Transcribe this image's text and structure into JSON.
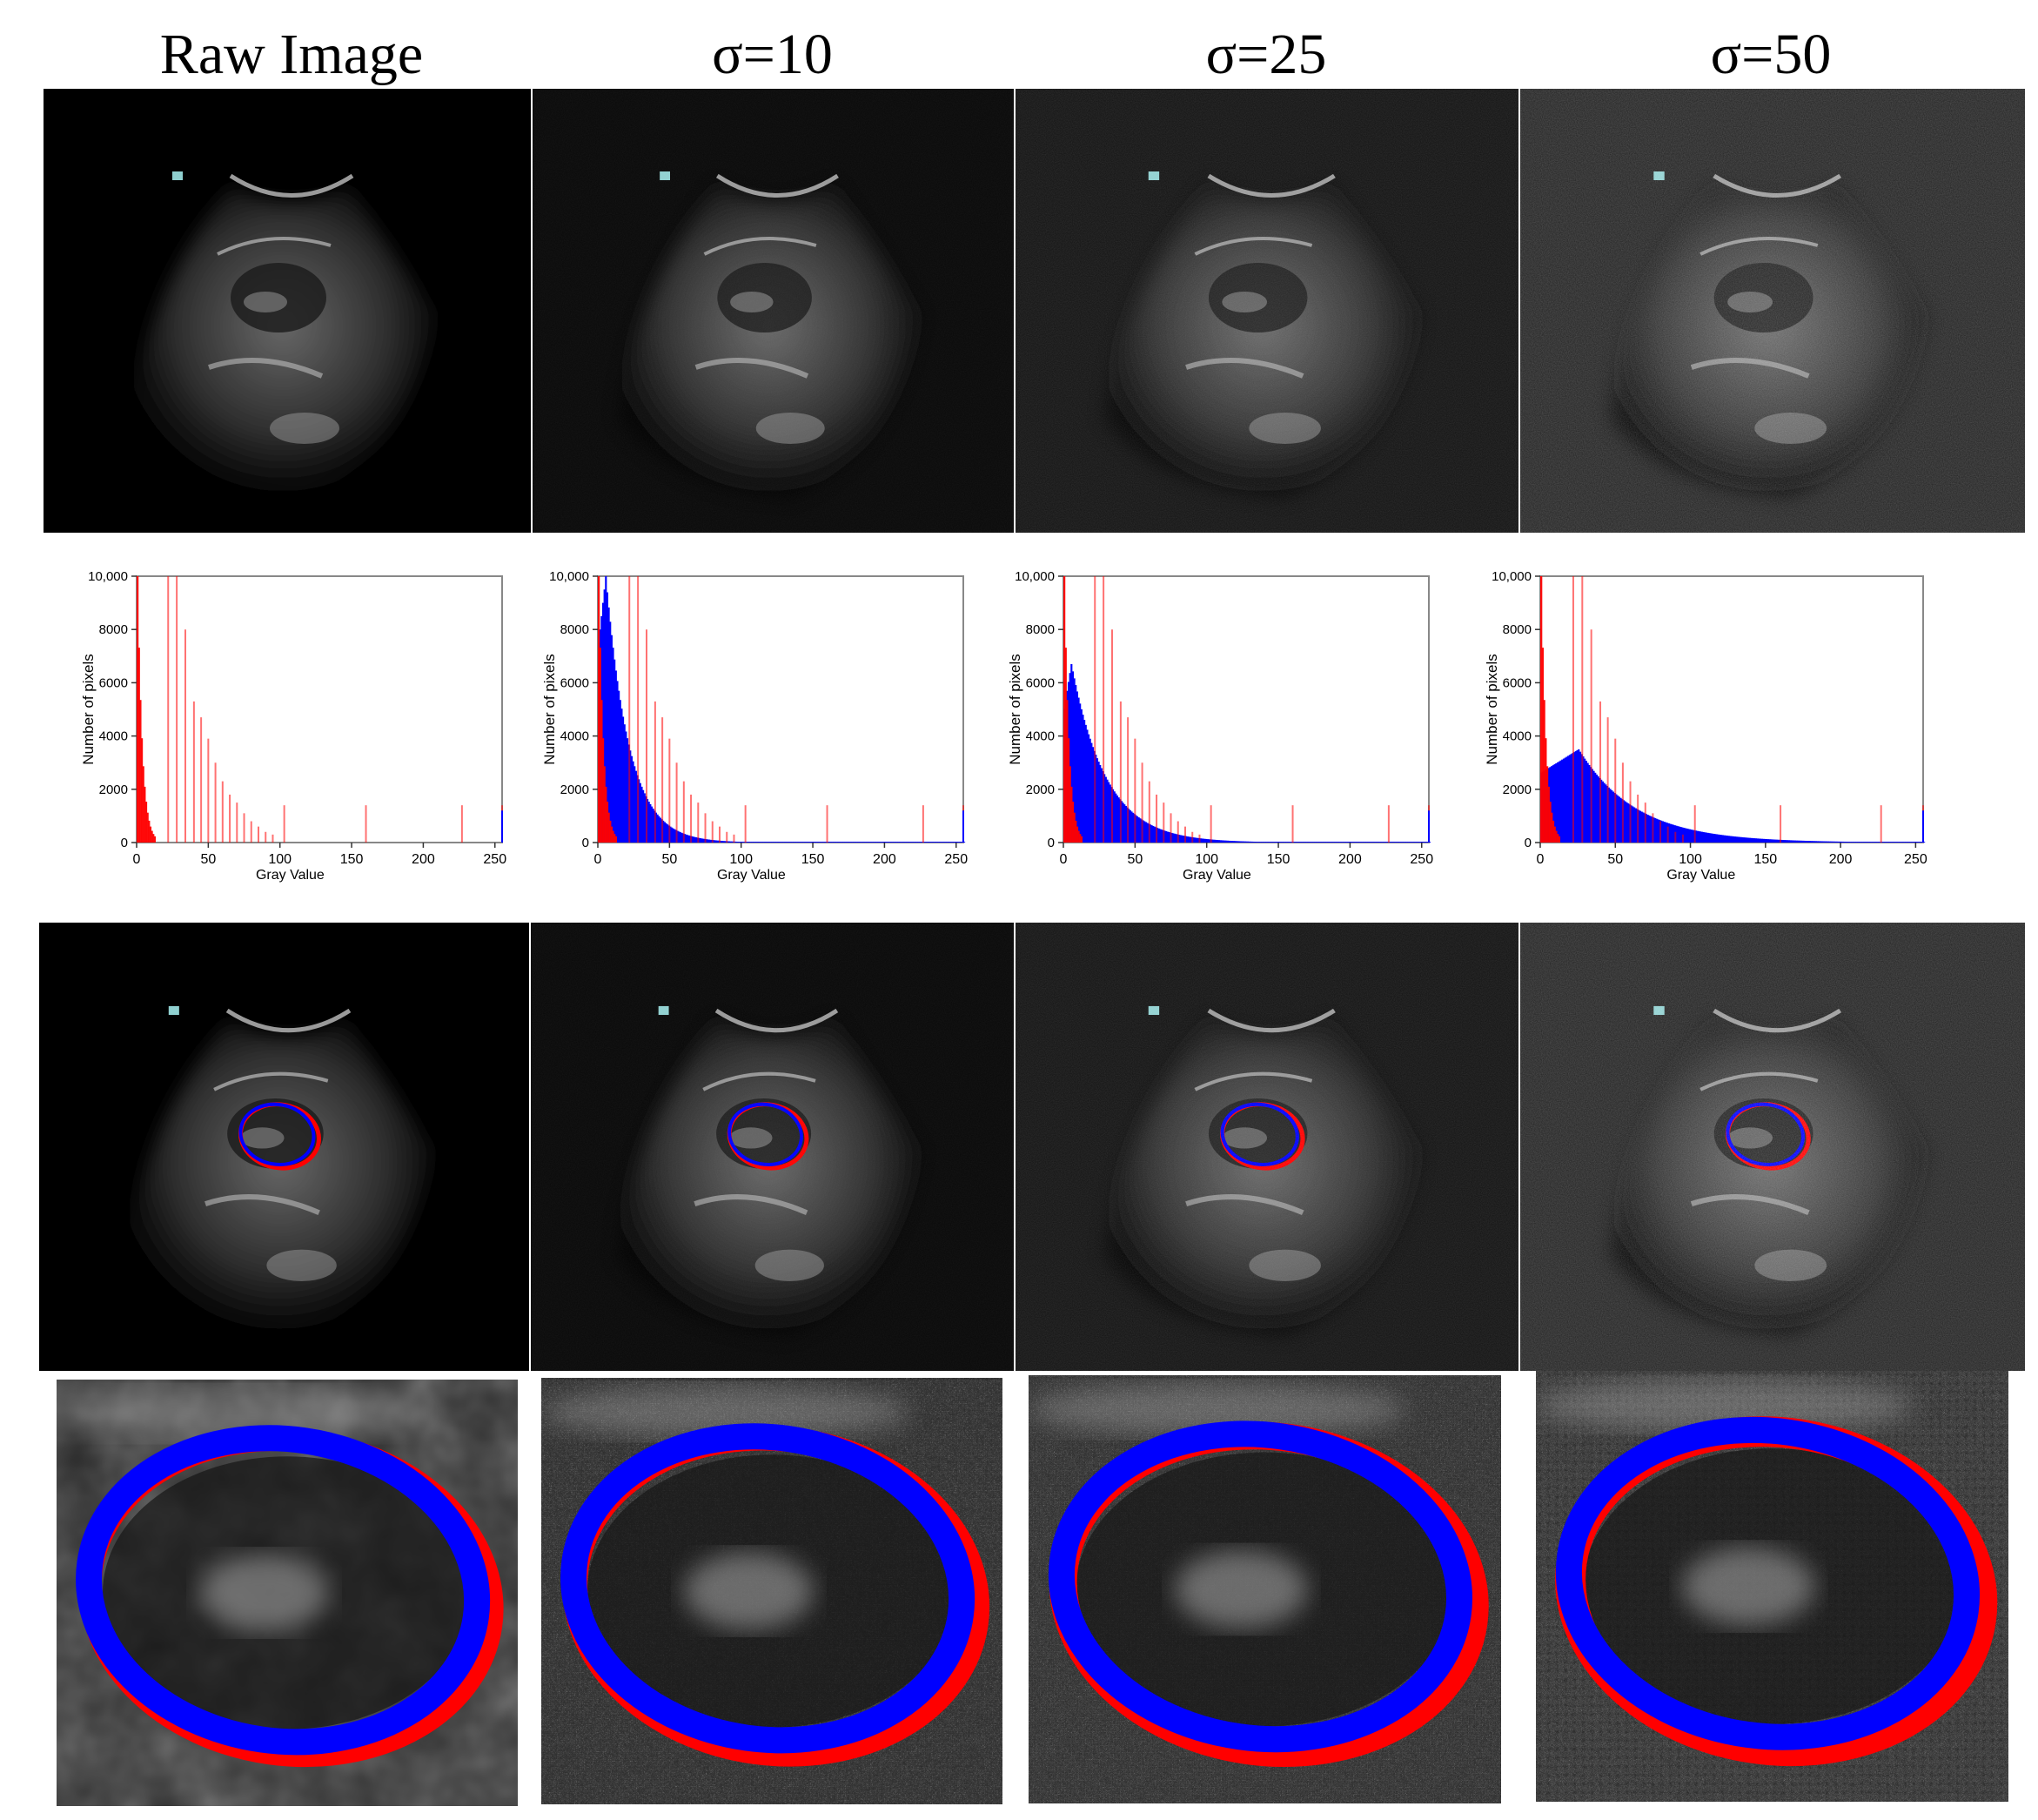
{
  "columns": [
    {
      "title": "Raw Image",
      "noise": 0.0,
      "bg": 0.0,
      "shows_noisy_hist": false
    },
    {
      "title": "σ=10",
      "noise": 0.2,
      "bg": 0.03,
      "shows_noisy_hist": true
    },
    {
      "title": "σ=25",
      "noise": 0.45,
      "bg": 0.07,
      "shows_noisy_hist": true
    },
    {
      "title": "σ=50",
      "noise": 0.85,
      "bg": 0.13,
      "shows_noisy_hist": true
    }
  ],
  "colors": {
    "raw_hist": "#ff0000",
    "noisy_hist": "#0000ff",
    "contour_a": "#ff0000",
    "contour_b": "#0000ff",
    "axis": "#333333",
    "frame": "#888888"
  },
  "chart_data": [
    {
      "type": "bar",
      "xlabel": "Gray  Value",
      "ylabel": "Number of pixels",
      "xlim": [
        0,
        255
      ],
      "ylim": [
        0,
        10000
      ],
      "x_ticks": [
        "0",
        "50",
        "100",
        "150",
        "200",
        "250"
      ],
      "y_ticks": [
        "0",
        "2000",
        "4000",
        "6000",
        "8000",
        "10,000"
      ],
      "series": [
        {
          "values_desc": "raw-decay",
          "spikes": [
            [
              22,
              10000
            ],
            [
              28,
              10000
            ],
            [
              34,
              8000
            ],
            [
              40,
              5300
            ],
            [
              45,
              4700
            ],
            [
              50,
              3900
            ],
            [
              55,
              3000
            ]
          ]
        }
      ]
    },
    {
      "type": "bar",
      "xlabel": "Gray  Value",
      "ylabel": "Number of pixels",
      "xlim": [
        0,
        255
      ],
      "ylim": [
        0,
        10000
      ],
      "x_ticks": [
        "0",
        "50",
        "100",
        "150",
        "200",
        "250"
      ],
      "y_ticks": [
        "0",
        "2000",
        "4000",
        "6000",
        "8000",
        "10,000"
      ],
      "series": [
        {
          "peak": 10000,
          "peak_at": 5,
          "decay": 16
        }
      ]
    },
    {
      "type": "bar",
      "xlabel": "Gray  Value",
      "ylabel": "Number of pixels",
      "xlim": [
        0,
        255
      ],
      "ylim": [
        0,
        10000
      ],
      "x_ticks": [
        "0",
        "50",
        "100",
        "150",
        "200",
        "250"
      ],
      "y_ticks": [
        "0",
        "2000",
        "4000",
        "6000",
        "8000",
        "10,000"
      ],
      "series": [
        {
          "peak": 6700,
          "peak_at": 5,
          "decay": 24
        }
      ]
    },
    {
      "type": "bar",
      "xlabel": "Gray  Value",
      "ylabel": "Number of pixels",
      "xlim": [
        0,
        255
      ],
      "ylim": [
        0,
        10000
      ],
      "x_ticks": [
        "0",
        "50",
        "100",
        "150",
        "200",
        "250"
      ],
      "y_ticks": [
        "0",
        "2000",
        "4000",
        "6000",
        "8000",
        "10,000"
      ],
      "series": [
        {
          "peak": 3500,
          "peak_at": 25,
          "decay": 38
        }
      ]
    }
  ]
}
